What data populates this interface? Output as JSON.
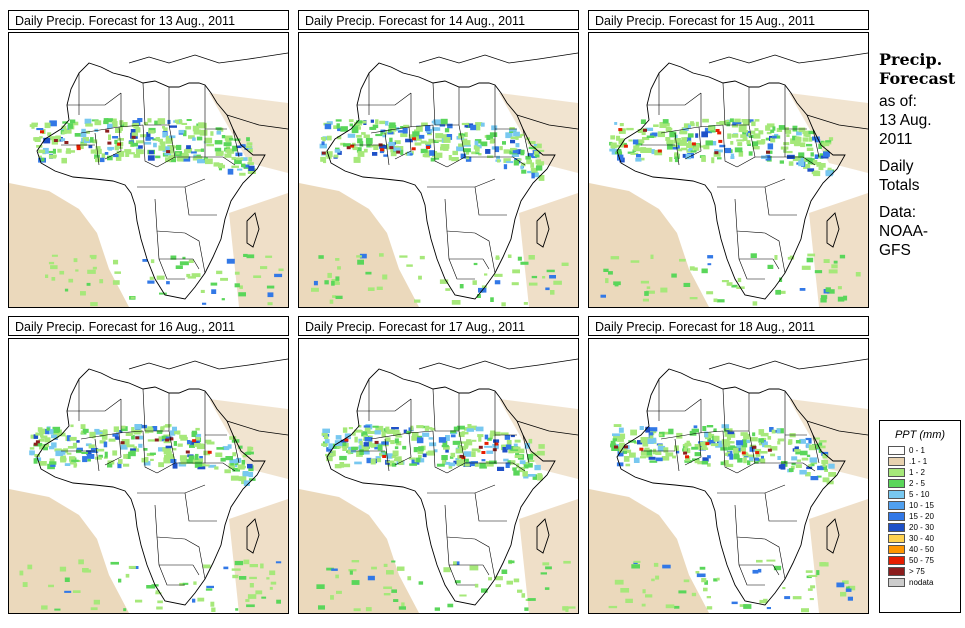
{
  "panels": [
    {
      "title": "Daily Precip. Forecast for  13 Aug., 2011"
    },
    {
      "title": "Daily Precip. Forecast for  14 Aug., 2011"
    },
    {
      "title": "Daily Precip. Forecast for  15 Aug., 2011"
    },
    {
      "title": "Daily Precip. Forecast for  16 Aug., 2011"
    },
    {
      "title": "Daily Precip. Forecast for  17 Aug., 2011"
    },
    {
      "title": "Daily Precip. Forecast for  18 Aug., 2011"
    }
  ],
  "side": {
    "heading1": "Precip.",
    "heading2": "Forecast",
    "asof1": "as of:",
    "asof2": "13 Aug.",
    "asof3": "2011",
    "totals1": "Daily",
    "totals2": "Totals",
    "data1": "Data:",
    "data2": "NOAA-",
    "data3": "GFS"
  },
  "legend": {
    "title": "PPT (mm)",
    "items": [
      {
        "label": "0 - 1",
        "color": "#ffffff"
      },
      {
        "label": ".1 - 1",
        "color": "#e8d2b0"
      },
      {
        "label": "1 - 2",
        "color": "#a6e87a"
      },
      {
        "label": "2 - 5",
        "color": "#5ad65a"
      },
      {
        "label": "5 - 10",
        "color": "#78c8f0"
      },
      {
        "label": "10 - 15",
        "color": "#50a0f0"
      },
      {
        "label": "15 - 20",
        "color": "#3278e6"
      },
      {
        "label": "20 - 30",
        "color": "#1e50c8"
      },
      {
        "label": "30 - 40",
        "color": "#ffd250"
      },
      {
        "label": "40 - 50",
        "color": "#ff9600"
      },
      {
        "label": "50 - 75",
        "color": "#e61e00"
      },
      {
        "label": "> 75",
        "color": "#8c1e1e"
      },
      {
        "label": "nodata",
        "color": "#cccccc"
      }
    ]
  },
  "colors": {
    "tan": "#e8d2b0",
    "light_green": "#a6e87a",
    "green": "#5ad65a",
    "light_blue": "#78c8f0",
    "blue": "#3278e6",
    "dark_blue": "#1e50c8",
    "red": "#e61e00",
    "dark_red": "#8c1e1e"
  }
}
